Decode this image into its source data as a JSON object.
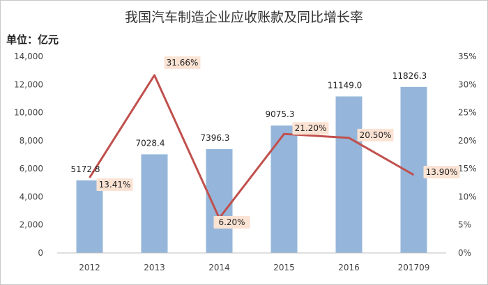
{
  "chart_data": {
    "type": "bar",
    "title": "我国汽车制造企业应收账款及同比增长率",
    "unit_label": "单位：亿元",
    "categories": [
      "2012",
      "2013",
      "2014",
      "2015",
      "2016",
      "201709"
    ],
    "series": [
      {
        "type": "bar",
        "axis": "left",
        "values": [
          5172.8,
          7028.4,
          7396.3,
          9075.3,
          11149.0,
          11826.3
        ],
        "labels": [
          "5172.8",
          "7028.4",
          "7396.3",
          "9075.3",
          "11149.0",
          "11826.3"
        ]
      },
      {
        "type": "line",
        "axis": "right",
        "values": [
          13.41,
          31.66,
          6.2,
          21.2,
          20.5,
          13.9
        ],
        "labels": [
          "13.41%",
          "31.66%",
          "6.20%",
          "21.20%",
          "20.50%",
          "13.90%"
        ]
      }
    ],
    "y_left": {
      "min": 0,
      "max": 14000,
      "ticks": [
        "0",
        "2,000",
        "4,000",
        "6,000",
        "8,000",
        "10,000",
        "12,000",
        "14,000"
      ]
    },
    "y_right": {
      "min": 0,
      "max": 35,
      "ticks": [
        "0%",
        "5%",
        "10%",
        "15%",
        "20%",
        "25%",
        "30%",
        "35%"
      ]
    },
    "grid": false,
    "colors": {
      "bar": "#95b6da",
      "line": "#c0504d",
      "label_bg": "#fbe3d4"
    }
  }
}
